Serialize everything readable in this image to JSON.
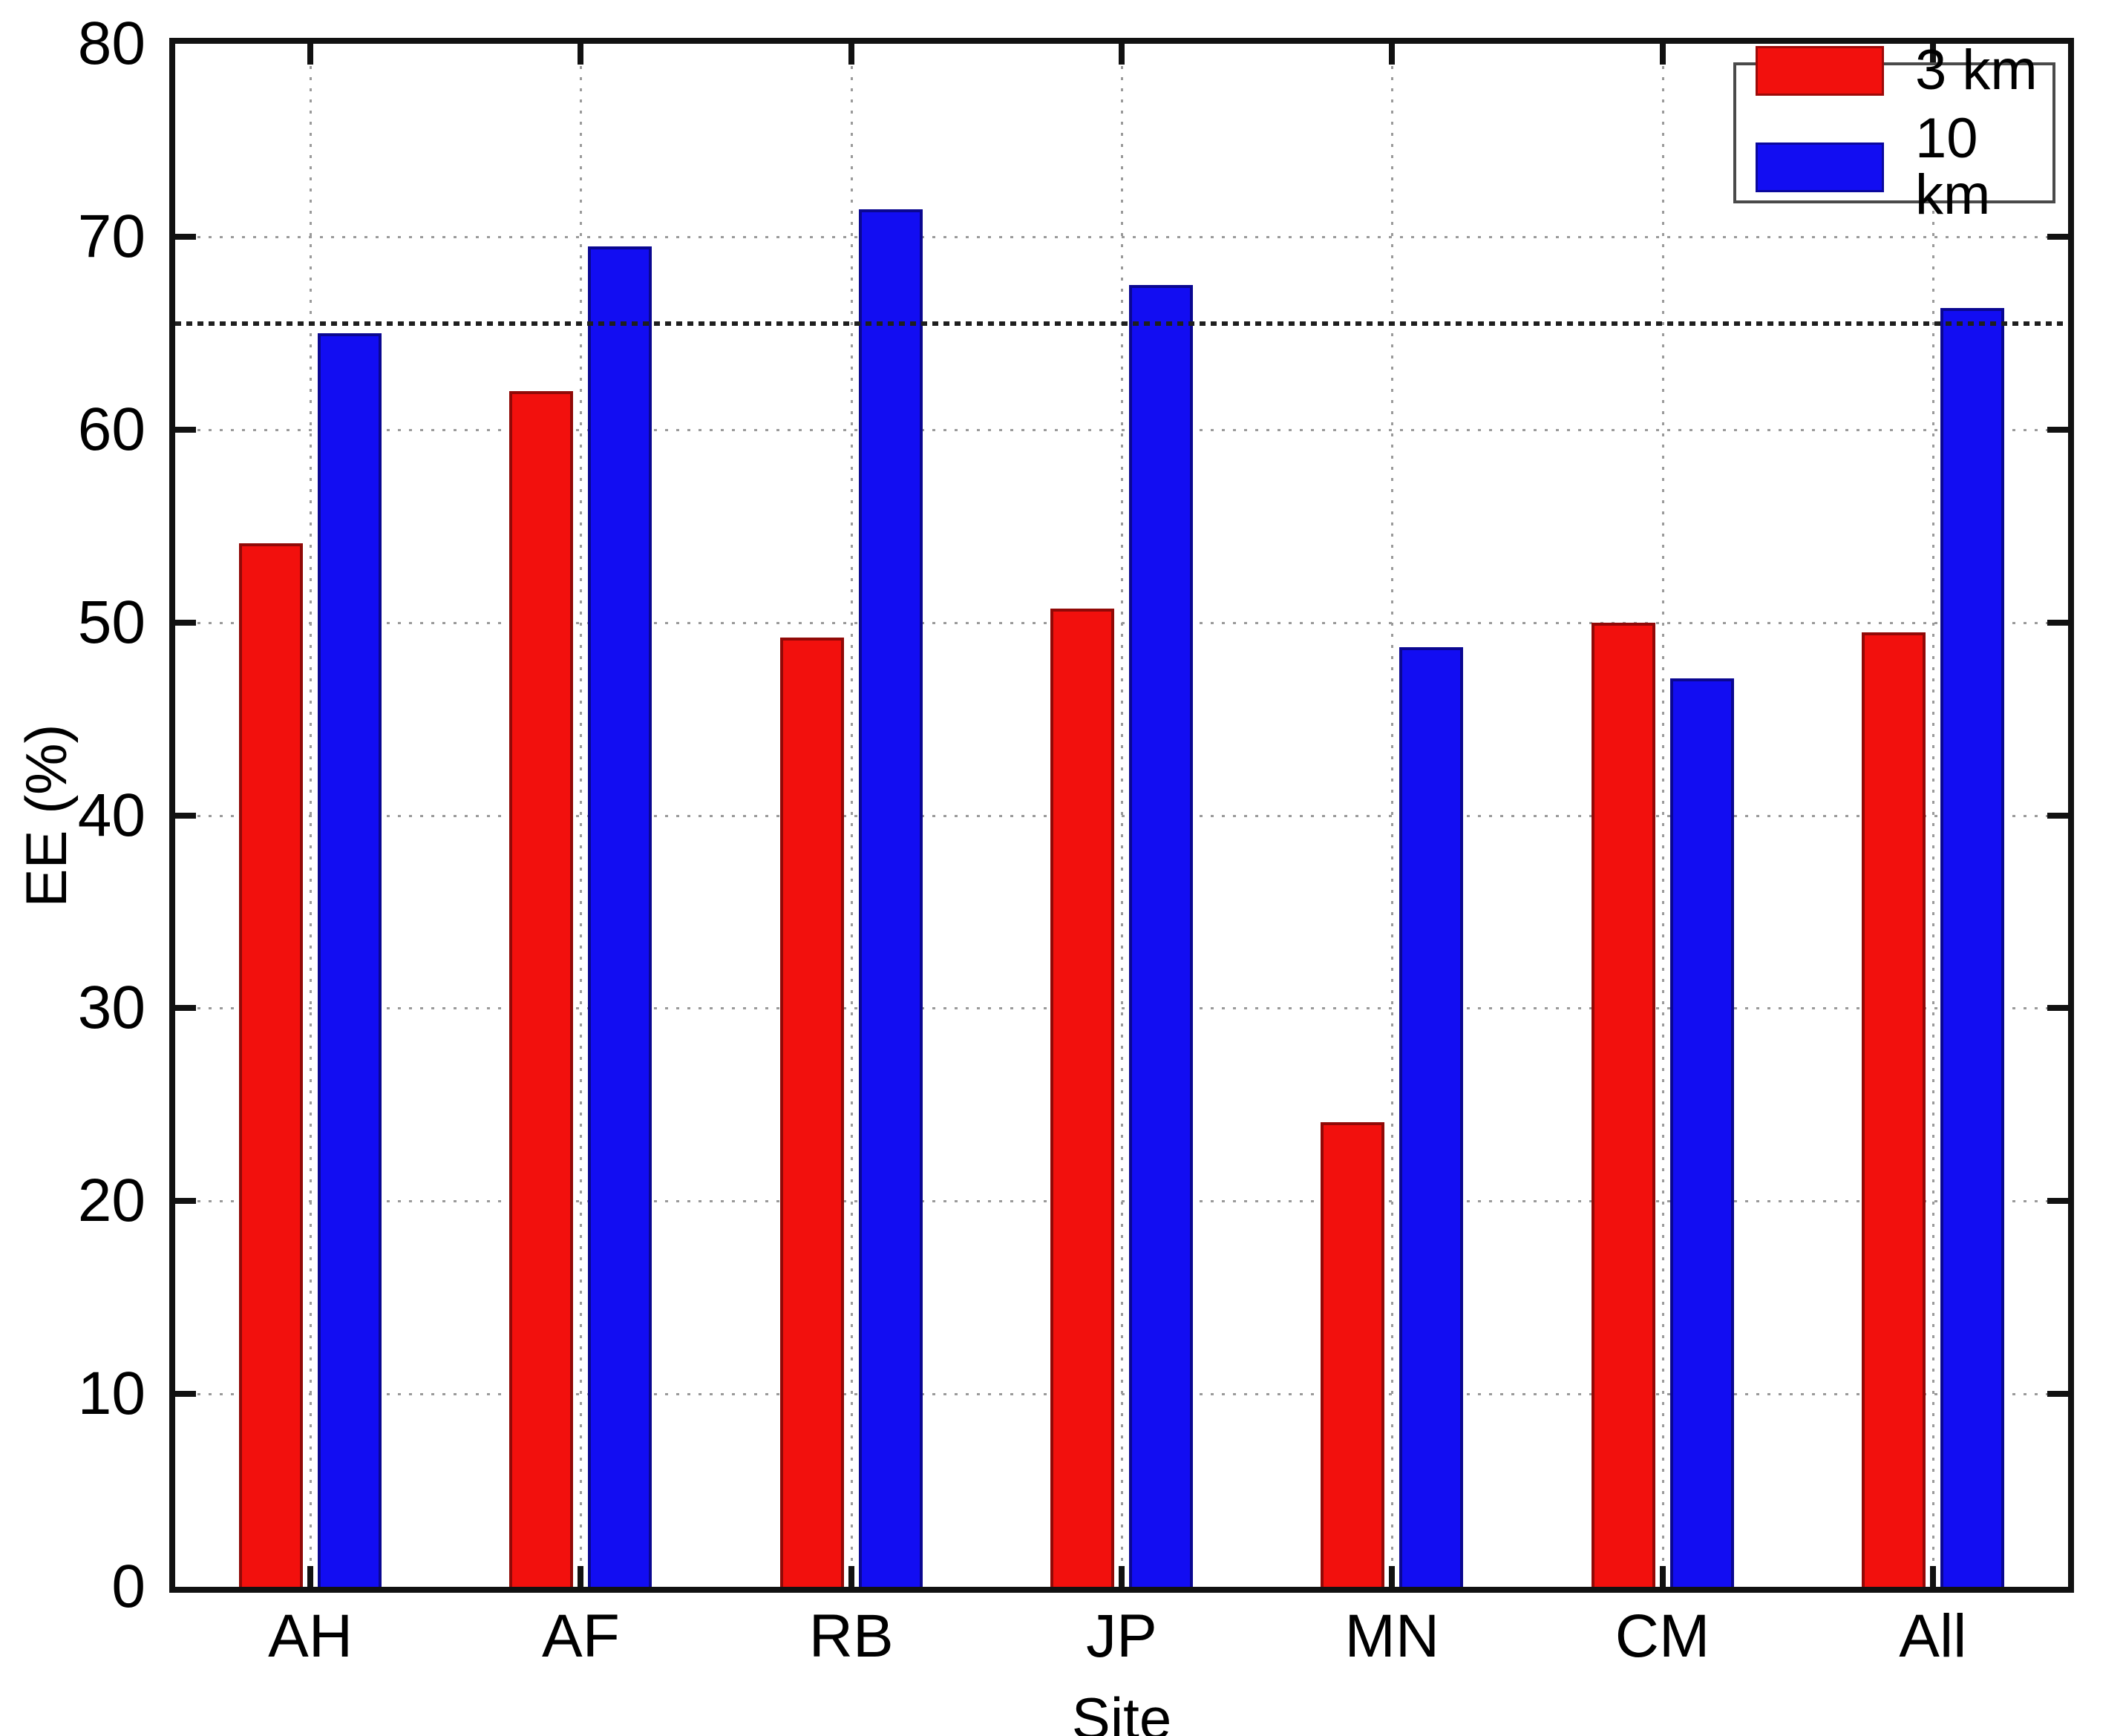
{
  "chart_data": {
    "type": "bar",
    "title": "",
    "xlabel": "Site",
    "ylabel": "EE (%)",
    "categories": [
      "AH",
      "AF",
      "RB",
      "JP",
      "MN",
      "CM",
      "All"
    ],
    "series": [
      {
        "name": "3 km",
        "color": "#f2100d",
        "values": [
          54.1,
          62.0,
          49.2,
          50.7,
          24.1,
          50.0,
          49.5
        ]
      },
      {
        "name": "10 km",
        "color": "#120df2",
        "values": [
          65.0,
          69.5,
          71.4,
          67.5,
          48.7,
          47.1,
          66.3
        ]
      }
    ],
    "ylim": [
      0,
      80
    ],
    "yticks": [
      0,
      10,
      20,
      30,
      40,
      50,
      60,
      70,
      80
    ],
    "grid": "dotted-both-axes",
    "reference_line": {
      "value": 65.5,
      "style": "dense-dotted",
      "color": "#1f1f1f"
    },
    "legend": {
      "position": "top-right",
      "entries": [
        "3 km",
        "10 km"
      ]
    }
  },
  "colors": {
    "background": "#ffffff",
    "axis": "#111111",
    "gridline": "#9a9a9a",
    "text": "#000000"
  }
}
